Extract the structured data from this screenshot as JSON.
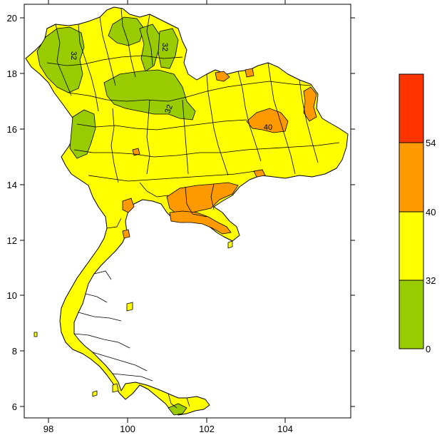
{
  "map": {
    "x_ticks": [
      "98",
      "100",
      "102",
      "104"
    ],
    "y_ticks": [
      "20",
      "18",
      "16",
      "14",
      "12",
      "10",
      "8",
      "6"
    ],
    "contour_labels": [
      "32",
      "32",
      "32",
      "40"
    ],
    "colors": {
      "land": "#ffff00",
      "low": "#99cc00",
      "mid": "#ffff00",
      "high": "#ff9900",
      "top": "#ff3300",
      "border": "#000000"
    }
  },
  "legend": {
    "labels": [
      "54",
      "40",
      "32",
      "0"
    ],
    "bins": [
      {
        "color": "#ff3300"
      },
      {
        "color": "#ff9900"
      },
      {
        "color": "#ffff00"
      },
      {
        "color": "#99cc00"
      }
    ]
  }
}
